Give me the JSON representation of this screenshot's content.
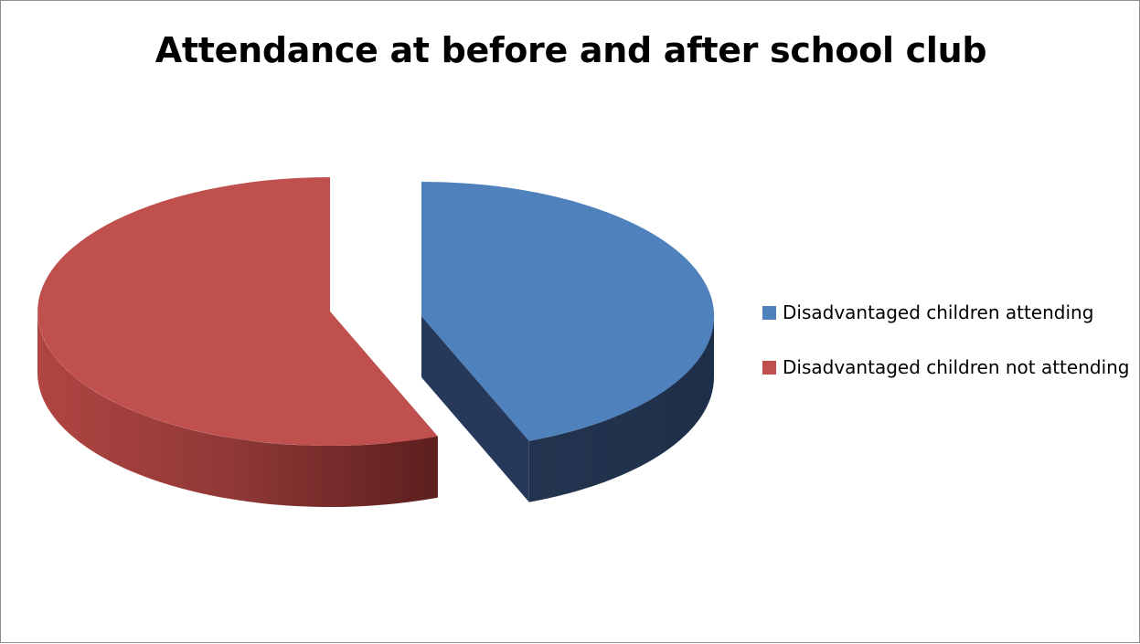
{
  "chart_data": {
    "type": "pie",
    "title": "Attendance at before and after school club",
    "labels": [
      "Disadvantaged children attending",
      "Disadvantaged children not attending"
    ],
    "values": [
      44,
      56
    ],
    "colors": [
      "#4f81bd",
      "#c0504d"
    ],
    "style": "3d-exploded",
    "legend_position": "right"
  }
}
